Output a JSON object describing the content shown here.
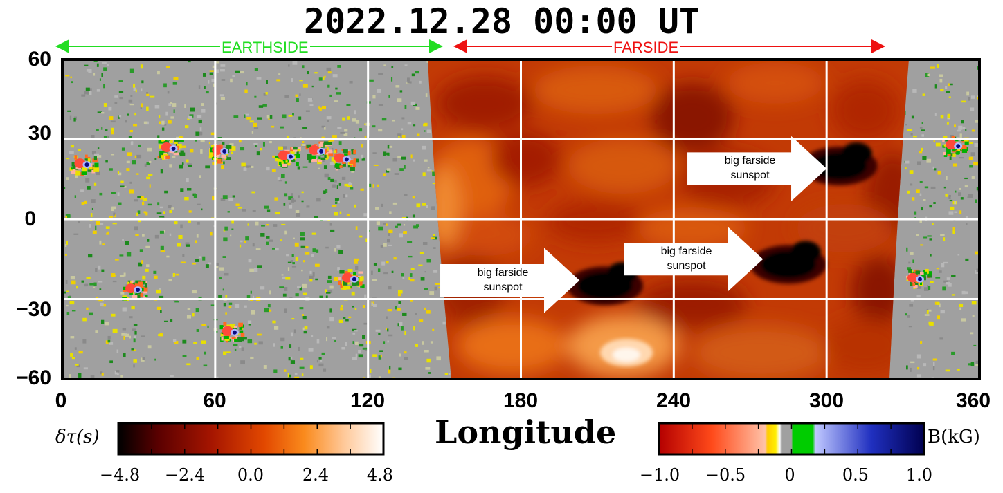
{
  "chart_data": {
    "type": "heatmap",
    "title": "2022.12.28  00:00 UT",
    "xlabel": "Longitude",
    "ylabel": "",
    "xlim": [
      0,
      360
    ],
    "ylim": [
      -60,
      60
    ],
    "x_ticks": [
      "0",
      "60",
      "120",
      "180",
      "240",
      "300",
      "360"
    ],
    "y_ticks": [
      "60",
      "30",
      "0",
      "−30",
      "−60"
    ],
    "grid": true,
    "regions": [
      {
        "label": "EARTHSIDE",
        "color": "#22dd22",
        "lon_range": [
          0,
          150
        ]
      },
      {
        "label": "FARSIDE",
        "color": "#ee1111",
        "lon_range": [
          155,
          325
        ]
      }
    ],
    "farside_lon_range": [
      150,
      330
    ],
    "colorbars": [
      {
        "label": "δτ(s)",
        "range": [
          -4.8,
          4.8
        ],
        "ticks": [
          "−4.8",
          "−2.4",
          "0.0",
          "2.4",
          "4.8"
        ],
        "colors": [
          "#000000",
          "#5a0000",
          "#a51500",
          "#e24800",
          "#fa8a1c",
          "#ffc898",
          "#ffffff"
        ]
      },
      {
        "label": "B(kG)",
        "range": [
          -1.0,
          1.0
        ],
        "ticks": [
          "−1.0",
          "−0.5",
          "0",
          "0.5",
          "1.0"
        ],
        "colors": [
          "#b40000",
          "#ff4a1a",
          "#ffc2a8",
          "#ffee00",
          "#a0a0a0",
          "#00cc00",
          "#c0c8ff",
          "#2030c0",
          "#000050"
        ]
      }
    ],
    "annotations": [
      {
        "text_lines": [
          "big farside",
          "sunspot"
        ],
        "lon": 302,
        "lat": 19
      },
      {
        "text_lines": [
          "big farside",
          "sunspot"
        ],
        "lon": 205,
        "lat": -23
      },
      {
        "text_lines": [
          "big farside",
          "sunspot"
        ],
        "lon": 277,
        "lat": -15
      }
    ],
    "farside_sunspots": [
      {
        "lon": 305,
        "lat": 20,
        "delta_tau": -4.8
      },
      {
        "lon": 213,
        "lat": -25,
        "delta_tau": -4.8
      },
      {
        "lon": 285,
        "lat": -17,
        "delta_tau": -4.8
      }
    ],
    "active_regions": [
      {
        "lon": 8,
        "lat": 21
      },
      {
        "lon": 42,
        "lat": 27
      },
      {
        "lon": 62,
        "lat": 26
      },
      {
        "lon": 88,
        "lat": 24
      },
      {
        "lon": 100,
        "lat": 26
      },
      {
        "lon": 110,
        "lat": 23
      },
      {
        "lon": 28,
        "lat": -26
      },
      {
        "lon": 66,
        "lat": -42
      },
      {
        "lon": 113,
        "lat": -22
      },
      {
        "lon": 335,
        "lat": -22
      },
      {
        "lon": 350,
        "lat": 28
      }
    ],
    "colors": {
      "earthside_background": "#a0a0a0",
      "grid": "#ffffff",
      "arrow_earth": "#22dd22",
      "arrow_far": "#ee1111"
    }
  }
}
